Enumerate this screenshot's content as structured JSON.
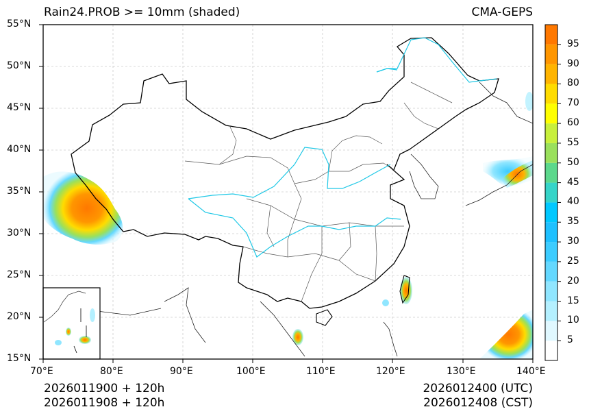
{
  "title_left": "Rain24.PROB >= 10mm (shaded)",
  "title_right": "CMA-GEPS",
  "footer": {
    "left_line1": "2026011900 + 120h",
    "left_line2": "2026011908 + 120h",
    "right_line1": "2026012400 (UTC)",
    "right_line2": "2026012408 (CST)"
  },
  "map": {
    "lon_range": [
      70,
      140
    ],
    "lat_range": [
      15,
      55
    ],
    "lon_ticks": [
      "70°E",
      "80°E",
      "90°E",
      "100°E",
      "110°E",
      "120°E",
      "130°E",
      "140°E"
    ],
    "lat_ticks": [
      "55°N",
      "50°N",
      "45°N",
      "40°N",
      "35°N",
      "30°N",
      "25°N",
      "20°N",
      "15°N"
    ],
    "gridlines": true
  },
  "colorbar": {
    "levels": [
      "5",
      "10",
      "15",
      "20",
      "25",
      "30",
      "35",
      "40",
      "45",
      "50",
      "55",
      "60",
      "70",
      "80",
      "90",
      "95"
    ],
    "colors": [
      "#ffffff",
      "#e0f8ff",
      "#b4f0ff",
      "#90e6ff",
      "#64d8ff",
      "#3cccff",
      "#1ec0ff",
      "#00c8ff",
      "#36d4c8",
      "#5cd88c",
      "#9ae05c",
      "#c8f03c",
      "#ffff00",
      "#ffdc00",
      "#ffb400",
      "#ff9600",
      "#ff7800"
    ]
  },
  "colors": {
    "river": "#1ec8e6",
    "border": "#000000",
    "province": "#555555"
  }
}
